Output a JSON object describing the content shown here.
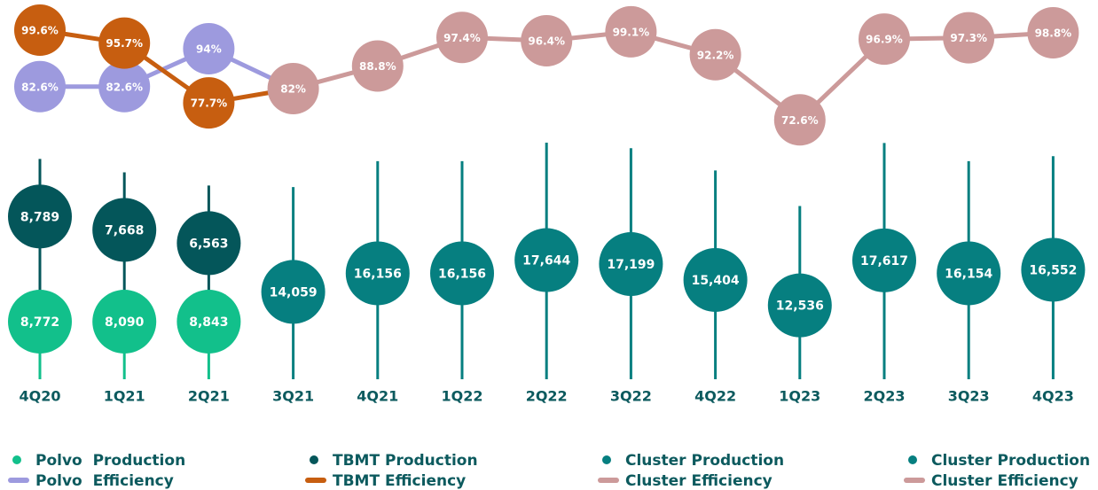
{
  "chart_data": {
    "type": "bubble_timeline",
    "categories": [
      "4Q20",
      "1Q21",
      "2Q21",
      "3Q21",
      "4Q21",
      "1Q22",
      "2Q22",
      "3Q22",
      "4Q22",
      "1Q23",
      "2Q23",
      "3Q23",
      "4Q23"
    ],
    "production_series": [
      {
        "name": "Polvo  Production",
        "color": "#12c08b",
        "values": [
          8772,
          8090,
          8843,
          null,
          null,
          null,
          null,
          null,
          null,
          null,
          null,
          null,
          null
        ],
        "value_labels": [
          "8,772",
          "8,090",
          "8,843",
          null,
          null,
          null,
          null,
          null,
          null,
          null,
          null,
          null,
          null
        ]
      },
      {
        "name": "TBMT Production",
        "color": "#04565a",
        "values": [
          8789,
          7668,
          6563,
          null,
          null,
          null,
          null,
          null,
          null,
          null,
          null,
          null,
          null
        ],
        "value_labels": [
          "8,789",
          "7,668",
          "6,563",
          null,
          null,
          null,
          null,
          null,
          null,
          null,
          null,
          null,
          null
        ]
      },
      {
        "name": "Cluster Production",
        "color": "#067f80",
        "values": [
          null,
          null,
          null,
          14059,
          16156,
          16156,
          17644,
          17199,
          15404,
          12536,
          17617,
          16154,
          16552
        ],
        "value_labels": [
          null,
          null,
          null,
          "14,059",
          "16,156",
          "16,156",
          "17,644",
          "17,199",
          "15,404",
          "12,536",
          "17,617",
          "16,154",
          "16,552"
        ]
      }
    ],
    "efficiency_series": [
      {
        "name": "Polvo  Efficiency",
        "color": "#9d9ade",
        "values": [
          82.6,
          82.6,
          94,
          null,
          null,
          null,
          null,
          null,
          null,
          null,
          null,
          null,
          null
        ],
        "value_labels": [
          "82.6%",
          "82.6%",
          "94%",
          null,
          null,
          null,
          null,
          null,
          null,
          null,
          null,
          null,
          null
        ]
      },
      {
        "name": "TBMT Efficiency",
        "color": "#c75e10",
        "values": [
          99.6,
          95.7,
          77.7,
          null,
          null,
          null,
          null,
          null,
          null,
          null,
          null,
          null,
          null
        ],
        "value_labels": [
          "99.6%",
          "95.7%",
          "77.7%",
          null,
          null,
          null,
          null,
          null,
          null,
          null,
          null,
          null,
          null
        ]
      },
      {
        "name": "Cluster Efficiency",
        "color": "#cc9a9a",
        "values": [
          null,
          null,
          null,
          82,
          88.8,
          97.4,
          96.4,
          99.1,
          92.2,
          72.6,
          96.9,
          97.3,
          98.8
        ],
        "value_labels": [
          null,
          null,
          null,
          "82%",
          "88.8%",
          "97.4%",
          "96.4%",
          "99.1%",
          "92.2%",
          "72.6%",
          "96.9%",
          "97.3%",
          "98.8%"
        ]
      }
    ],
    "legend_repeat": {
      "production": "Cluster Production",
      "efficiency": "Cluster Efficiency"
    }
  }
}
